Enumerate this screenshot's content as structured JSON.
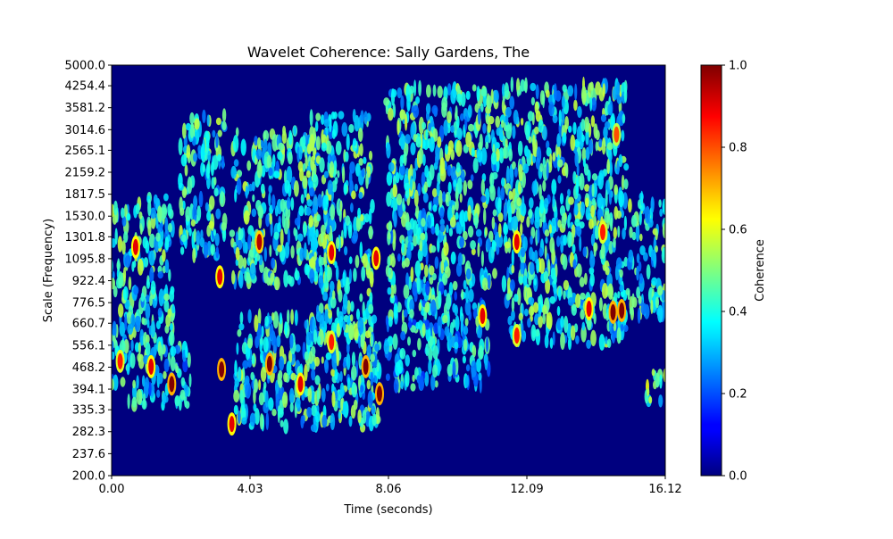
{
  "chart_data": {
    "type": "heatmap",
    "title": "Wavelet Coherence: Sally Gardens, The",
    "xlabel": "Time (seconds)",
    "ylabel": "Scale (Frequency)",
    "colorbar_label": "Coherence",
    "colormap": "jet",
    "background_color": "#00007f",
    "xlim": [
      0.0,
      16.12
    ],
    "ylim": [
      200.0,
      5000.0
    ],
    "y_scale": "log",
    "clim": [
      0.0,
      1.0
    ],
    "x_ticks": [
      0.0,
      4.03,
      8.06,
      12.09,
      16.12
    ],
    "x_tick_labels": [
      "0.00",
      "4.03",
      "8.06",
      "12.09",
      "16.12"
    ],
    "y_ticks": [
      200.0,
      237.6,
      282.3,
      335.3,
      394.1,
      468.2,
      556.1,
      660.7,
      776.5,
      922.4,
      1095.8,
      1301.8,
      1530.0,
      1817.5,
      2159.2,
      2565.1,
      3014.6,
      3581.2,
      4254.4,
      5000.0
    ],
    "y_tick_labels": [
      "200.0",
      "237.6",
      "282.3",
      "335.3",
      "394.1",
      "468.2",
      "556.1",
      "660.7",
      "776.5",
      "922.4",
      "1095.8",
      "1301.8",
      "1530.0",
      "1817.5",
      "2159.2",
      "2565.1",
      "3014.6",
      "3581.2",
      "4254.4",
      "5000.0"
    ],
    "colorbar_ticks": [
      0.0,
      0.2,
      0.4,
      0.6,
      0.8,
      1.0
    ],
    "colorbar_tick_labels": [
      "0.0",
      "0.2",
      "0.4",
      "0.6",
      "0.8",
      "1.0"
    ],
    "regions": [
      {
        "t_start": 0.0,
        "t_end": 1.8,
        "f_low": 560.0,
        "f_high": 1800.0,
        "level": 0.4
      },
      {
        "t_start": 0.0,
        "t_end": 2.3,
        "f_low": 340.0,
        "f_high": 560.0,
        "level": 0.35
      },
      {
        "t_start": 2.0,
        "t_end": 3.3,
        "f_low": 1100.0,
        "f_high": 3400.0,
        "level": 0.4
      },
      {
        "t_start": 3.5,
        "t_end": 6.0,
        "f_low": 900.0,
        "f_high": 3000.0,
        "level": 0.4
      },
      {
        "t_start": 3.6,
        "t_end": 7.8,
        "f_low": 290.0,
        "f_high": 700.0,
        "level": 0.4
      },
      {
        "t_start": 5.8,
        "t_end": 7.6,
        "f_low": 560.0,
        "f_high": 3400.0,
        "level": 0.4
      },
      {
        "t_start": 8.0,
        "t_end": 11.5,
        "f_low": 900.0,
        "f_high": 4200.0,
        "level": 0.4
      },
      {
        "t_start": 8.0,
        "t_end": 11.0,
        "f_low": 400.0,
        "f_high": 900.0,
        "level": 0.35
      },
      {
        "t_start": 11.5,
        "t_end": 15.0,
        "f_low": 560.0,
        "f_high": 4300.0,
        "level": 0.4
      },
      {
        "t_start": 15.0,
        "t_end": 16.12,
        "f_low": 700.0,
        "f_high": 1800.0,
        "level": 0.4
      },
      {
        "t_start": 15.5,
        "t_end": 16.12,
        "f_low": 350.0,
        "f_high": 450.0,
        "level": 0.45
      }
    ],
    "hotspots": [
      {
        "t": 0.25,
        "f": 490.0,
        "value": 0.85
      },
      {
        "t": 0.7,
        "f": 1200.0,
        "value": 0.9
      },
      {
        "t": 1.15,
        "f": 470.0,
        "value": 0.9
      },
      {
        "t": 1.75,
        "f": 410.0,
        "value": 1.0
      },
      {
        "t": 3.2,
        "f": 460.0,
        "value": 1.0
      },
      {
        "t": 3.15,
        "f": 950.0,
        "value": 0.9
      },
      {
        "t": 3.5,
        "f": 300.0,
        "value": 0.9
      },
      {
        "t": 4.3,
        "f": 1250.0,
        "value": 0.95
      },
      {
        "t": 4.6,
        "f": 480.0,
        "value": 1.0
      },
      {
        "t": 5.5,
        "f": 410.0,
        "value": 0.9
      },
      {
        "t": 6.4,
        "f": 1150.0,
        "value": 0.9
      },
      {
        "t": 6.4,
        "f": 570.0,
        "value": 0.85
      },
      {
        "t": 7.4,
        "f": 470.0,
        "value": 1.0
      },
      {
        "t": 7.8,
        "f": 380.0,
        "value": 1.0
      },
      {
        "t": 7.7,
        "f": 1100.0,
        "value": 0.9
      },
      {
        "t": 10.8,
        "f": 700.0,
        "value": 0.9
      },
      {
        "t": 11.8,
        "f": 1250.0,
        "value": 0.9
      },
      {
        "t": 11.8,
        "f": 600.0,
        "value": 0.85
      },
      {
        "t": 13.9,
        "f": 740.0,
        "value": 0.9
      },
      {
        "t": 14.3,
        "f": 1350.0,
        "value": 0.85
      },
      {
        "t": 14.6,
        "f": 720.0,
        "value": 1.0
      },
      {
        "t": 14.85,
        "f": 730.0,
        "value": 1.0
      },
      {
        "t": 14.7,
        "f": 2900.0,
        "value": 0.8
      }
    ]
  }
}
